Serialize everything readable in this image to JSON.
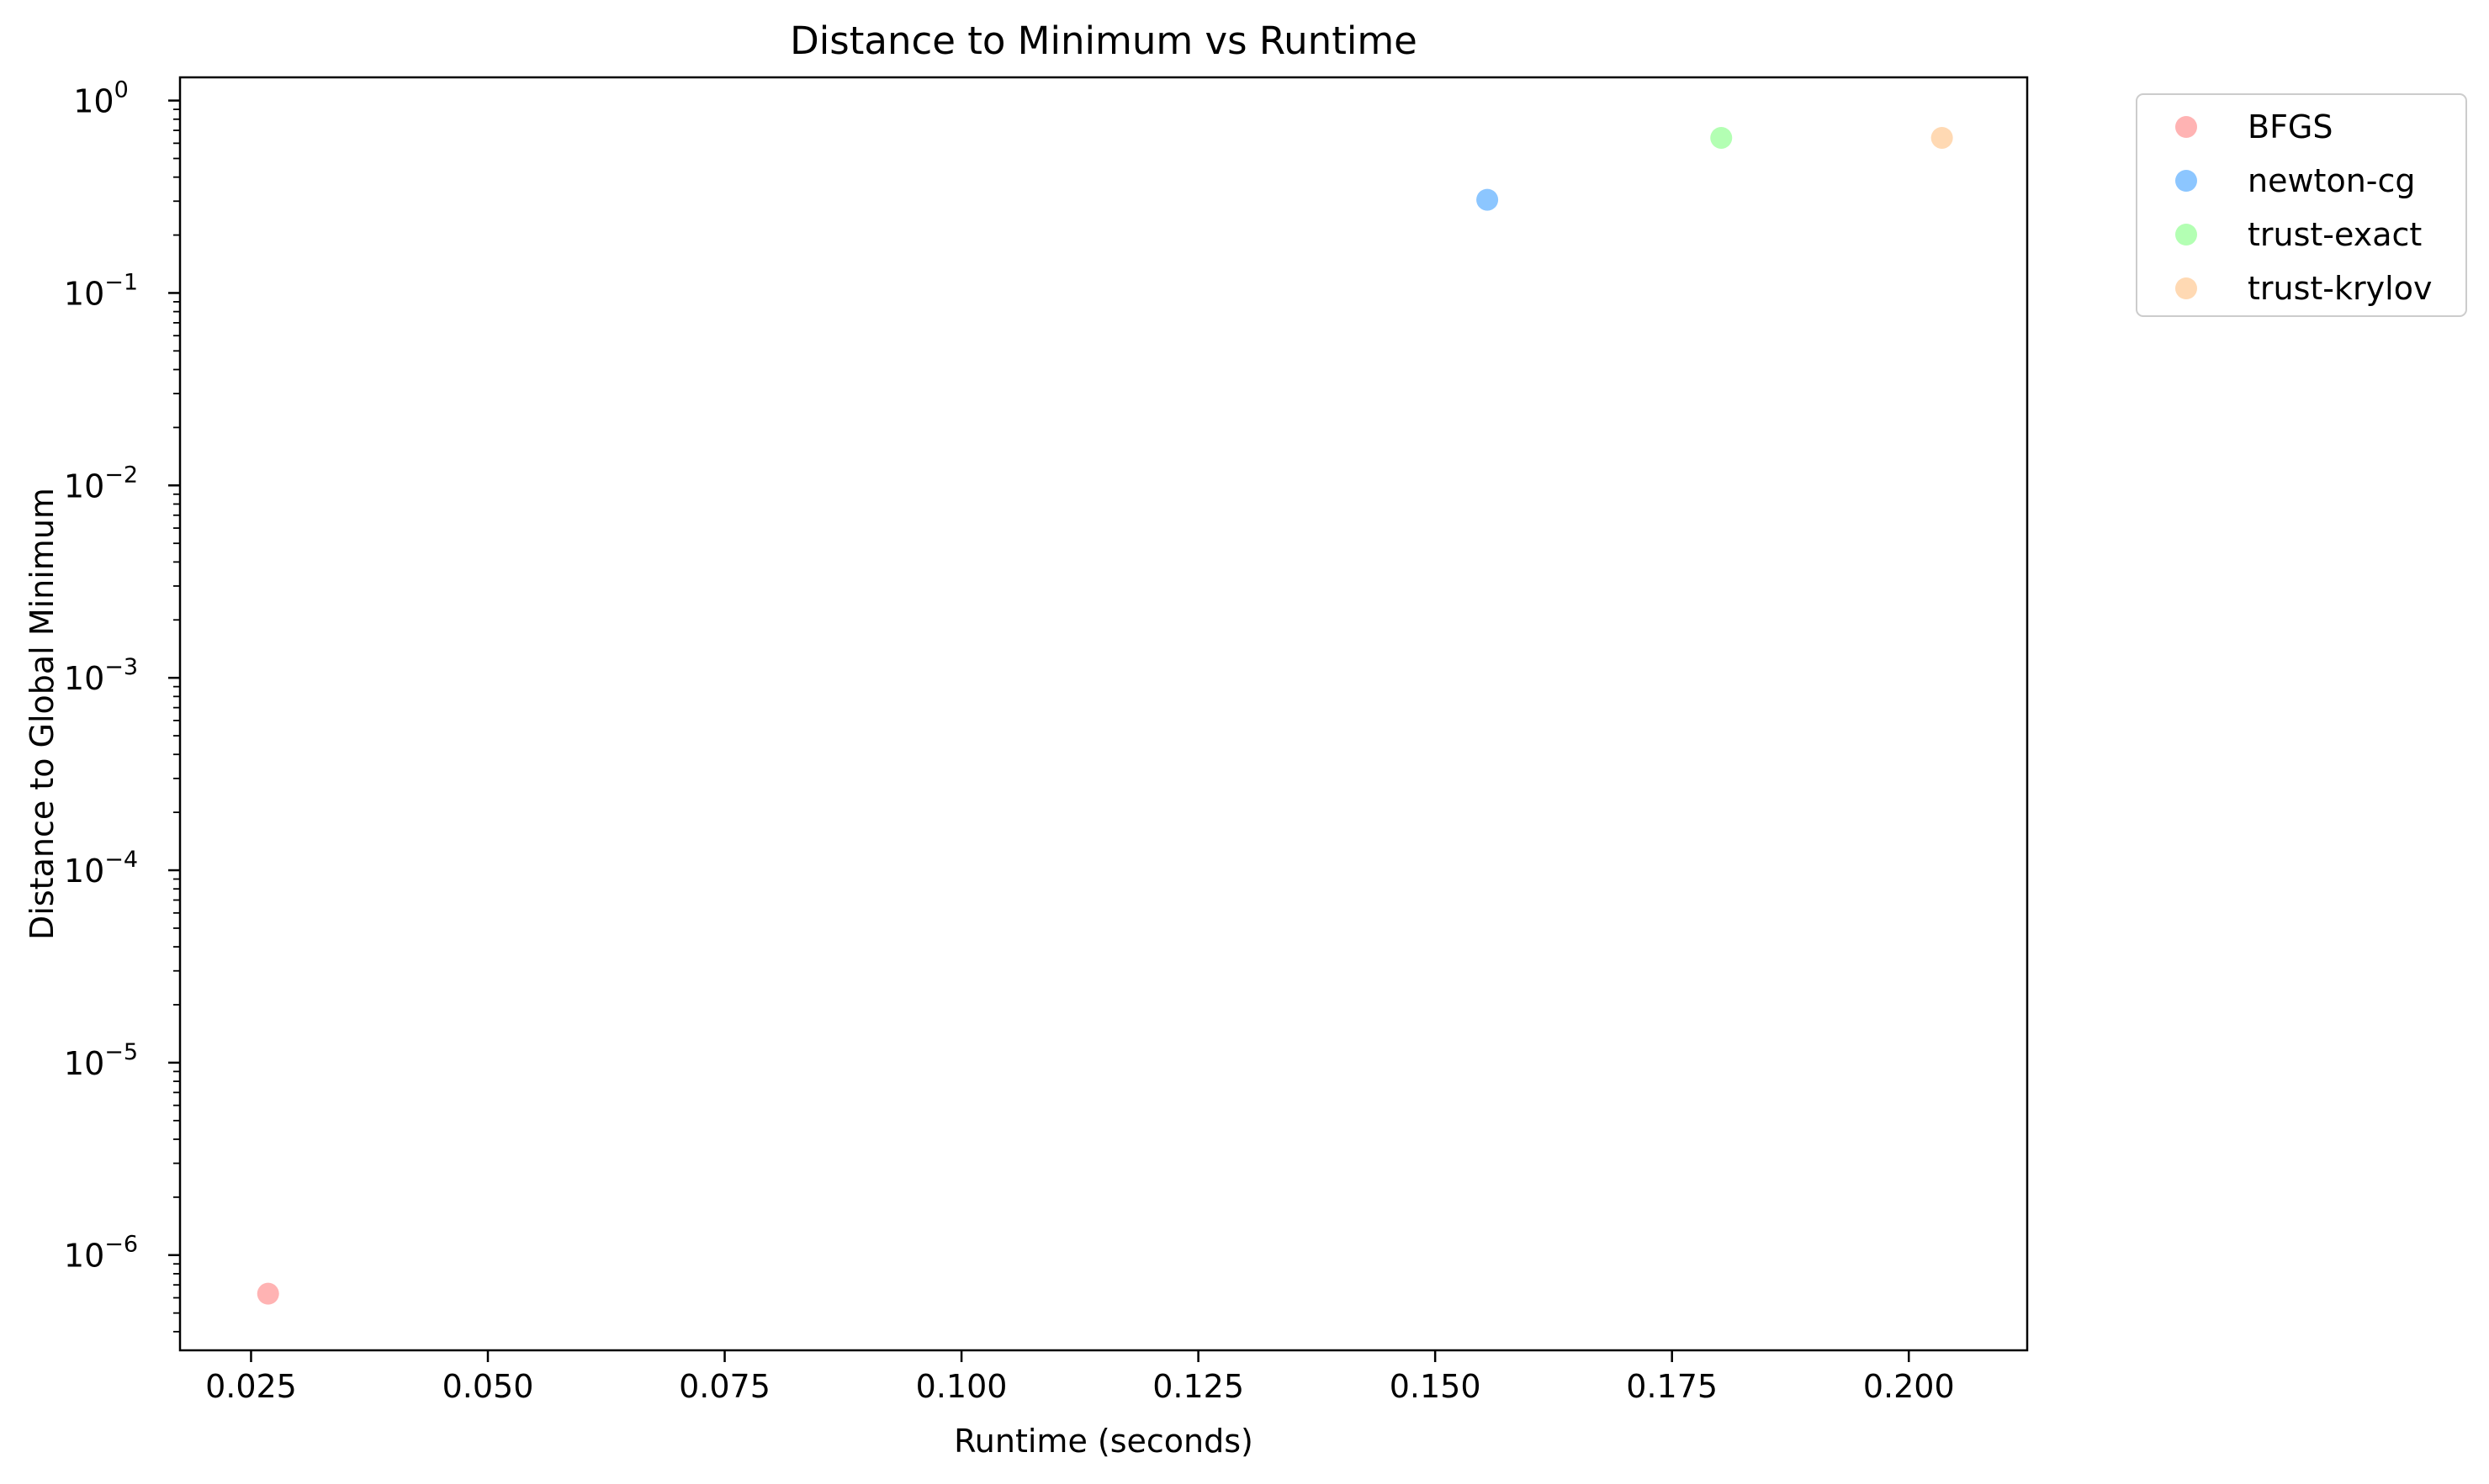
{
  "chart_data": {
    "type": "scatter",
    "title": "Distance to Minimum vs Runtime",
    "xlabel": "Runtime (seconds)",
    "ylabel": "Distance to Global Minimum",
    "x_scale": "linear",
    "y_scale": "log",
    "xlim": [
      0.0175,
      0.2125
    ],
    "ylim": [
      3.2e-07,
      1.32
    ],
    "grid": false,
    "legend_position": "outside-top-right",
    "x_ticks": [
      {
        "value": 0.025,
        "label": "0.025"
      },
      {
        "value": 0.05,
        "label": "0.050"
      },
      {
        "value": 0.075,
        "label": "0.075"
      },
      {
        "value": 0.1,
        "label": "0.100"
      },
      {
        "value": 0.125,
        "label": "0.125"
      },
      {
        "value": 0.15,
        "label": "0.150"
      },
      {
        "value": 0.175,
        "label": "0.175"
      },
      {
        "value": 0.2,
        "label": "0.200"
      }
    ],
    "y_ticks": [
      {
        "value": 1e-06,
        "label": "10",
        "exp": "−6"
      },
      {
        "value": 1e-05,
        "label": "10",
        "exp": "−5"
      },
      {
        "value": 0.0001,
        "label": "10",
        "exp": "−4"
      },
      {
        "value": 0.001,
        "label": "10",
        "exp": "−3"
      },
      {
        "value": 0.01,
        "label": "10",
        "exp": "−2"
      },
      {
        "value": 0.1,
        "label": "10",
        "exp": "−1"
      },
      {
        "value": 1,
        "label": "10",
        "exp": "0"
      }
    ],
    "series": [
      {
        "name": "BFGS",
        "color": "#ff9999",
        "points": [
          {
            "x": 0.0268,
            "y": 6.3e-07
          }
        ]
      },
      {
        "name": "newton-cg",
        "color": "#66b3ff",
        "points": [
          {
            "x": 0.1555,
            "y": 0.305
          }
        ]
      },
      {
        "name": "trust-exact",
        "color": "#99ff99",
        "points": [
          {
            "x": 0.1802,
            "y": 0.64
          }
        ]
      },
      {
        "name": "trust-krylov",
        "color": "#ffcc99",
        "points": [
          {
            "x": 0.2035,
            "y": 0.64
          }
        ]
      }
    ]
  }
}
